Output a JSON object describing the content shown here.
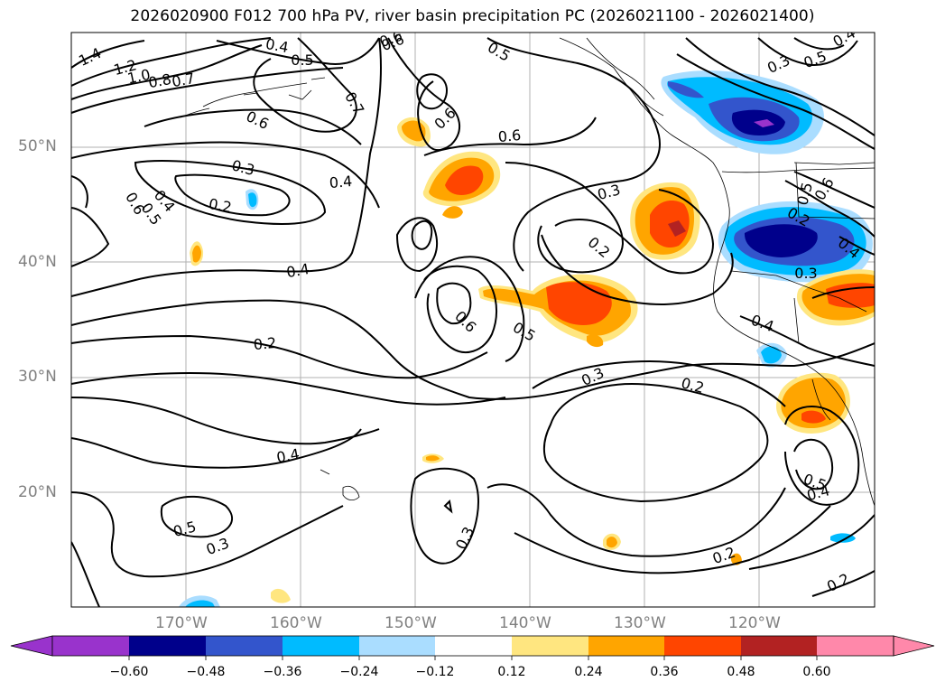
{
  "title": "2026020900 F012 700 hPa PV, river basin precipitation PC (2026021100 - 2026021400)",
  "axes": {
    "lat_labels": [
      "50°N",
      "40°N",
      "30°N",
      "20°N"
    ],
    "lon_labels": [
      "170°W",
      "160°W",
      "150°W",
      "140°W",
      "130°W",
      "120°W"
    ]
  },
  "colorbar": {
    "ticks": [
      "−0.60",
      "−0.48",
      "−0.36",
      "−0.24",
      "−0.12",
      "0.12",
      "0.24",
      "0.36",
      "0.48",
      "0.60"
    ],
    "colors": [
      "#9933cc",
      "#00008b",
      "#3355cc",
      "#00bbff",
      "#aaddff",
      "#ffffff",
      "#ffe680",
      "#ffa500",
      "#ff4500",
      "#b22222",
      "#ff88aa"
    ]
  },
  "contour_labels": [
    "1.4",
    "1.2",
    "1.0",
    "0.8",
    "0.7",
    "0.4",
    "0.5",
    "0.6",
    "0.7",
    "0.6",
    "0.3",
    "0.4",
    "0.2",
    "0.6",
    "0.5",
    "0.4",
    "0.4",
    "0.2",
    "0.4",
    "0.5",
    "0.3",
    "0.6",
    "0.6",
    "0.5",
    "0.6",
    "0.3",
    "0.2",
    "0.3",
    "0.2",
    "0.3",
    "0.4",
    "0.5",
    "0.6",
    "0.4",
    "0.3",
    "0.2",
    "0.5",
    "0.4",
    "0.2",
    "0.2",
    "0.6",
    "0.5",
    "0.3",
    "0.4",
    "0.5"
  ]
}
